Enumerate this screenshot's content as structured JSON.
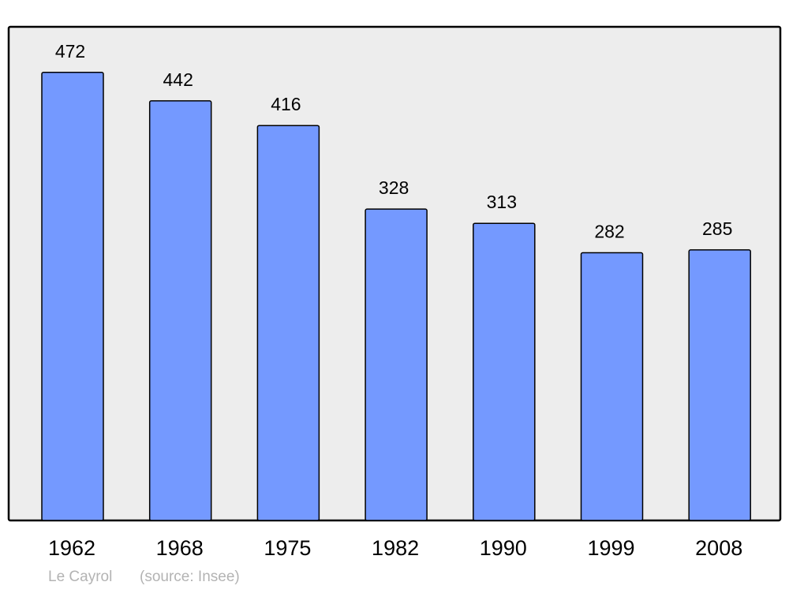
{
  "chart_data": {
    "type": "bar",
    "title": "",
    "xlabel": "",
    "ylabel": "",
    "categories": [
      "1962",
      "1968",
      "1975",
      "1982",
      "1990",
      "1999",
      "2008"
    ],
    "values": [
      472,
      442,
      416,
      328,
      313,
      282,
      285
    ],
    "ylim": [
      0,
      520
    ],
    "grid": false,
    "data_labels": true,
    "colors": {
      "bar": "#7499ff",
      "bar_stroke": "#000000",
      "plot_bg": "#ededed",
      "footer_text": "#b3b3b3"
    }
  },
  "footer": {
    "place": "Le Cayrol",
    "source": "(source: Insee)"
  }
}
